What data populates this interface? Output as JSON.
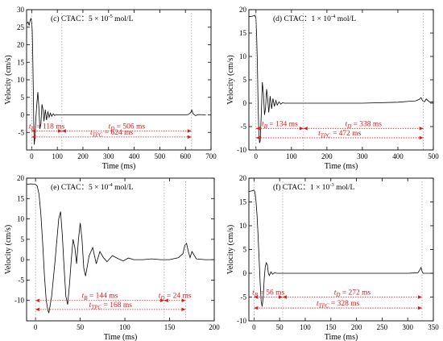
{
  "chart_data": [
    {
      "type": "line",
      "title": "(c) CTAC：5 × 10⁻⁵ mol/L",
      "xlabel": "Time (ms)",
      "ylabel": "Velocity (cm/s)",
      "xlim": [
        -20,
        700
      ],
      "ylim": [
        -10,
        30
      ],
      "xticks": [
        0,
        100,
        200,
        300,
        400,
        500,
        600,
        700
      ],
      "yticks": [
        -5,
        0,
        5,
        10,
        15,
        20,
        25,
        30
      ],
      "series": [
        {
          "x": [
            -20,
            -14,
            -10,
            -6,
            -3,
            0,
            2,
            4,
            6,
            8,
            10,
            13,
            16,
            20,
            24,
            28,
            32,
            36,
            40,
            44,
            48,
            53,
            58,
            63,
            68,
            73,
            78,
            84,
            90,
            96,
            102,
            108,
            115,
            120,
            150,
            200,
            300,
            400,
            500,
            600,
            610,
            620,
            625,
            630,
            640,
            650,
            680
          ],
          "y": [
            26,
            26.5,
            25.5,
            27,
            27.5,
            26.5,
            24,
            18,
            8,
            -2,
            -8.5,
            -6,
            -1,
            3,
            6.5,
            2,
            -4,
            -2.5,
            3,
            1.5,
            -1.8,
            1.5,
            -1.5,
            1,
            -0.7,
            0.5,
            -0.4,
            0.3,
            -0.2,
            0.1,
            0,
            0,
            0,
            0,
            0,
            0,
            0,
            0,
            0,
            0,
            0.1,
            0.6,
            1.4,
            0.3,
            -0.2,
            0.1,
            0
          ]
        }
      ],
      "annotations": [
        {
          "label": "t_B = 118 ms",
          "y": -4.6,
          "x_from": 0,
          "x_to": 118
        },
        {
          "label": "t_D = 506 ms",
          "y": -4.6,
          "x_from": 118,
          "x_to": 624
        },
        {
          "label": "t_TPC = 624 ms",
          "y": -6.3,
          "x_from": 0,
          "x_to": 624
        }
      ]
    },
    {
      "type": "line",
      "title": "(d) CTAC：1 × 10⁻⁴ mol/L",
      "xlabel": "Time (ms)",
      "ylabel": "Velocity (cm/s)",
      "xlim": [
        -20,
        500
      ],
      "ylim": [
        -10,
        20
      ],
      "xticks": [
        0,
        100,
        200,
        300,
        400,
        500
      ],
      "yticks": [
        -10,
        -5,
        0,
        5,
        10,
        15,
        20
      ],
      "series": [
        {
          "x": [
            -20,
            -10,
            -3,
            0,
            2,
            4,
            6,
            8,
            10,
            12,
            14,
            16,
            18,
            21,
            24,
            27,
            30,
            33,
            36,
            40,
            44,
            48,
            52,
            56,
            60,
            65,
            70,
            75,
            80,
            90,
            100,
            110,
            130,
            150,
            200,
            300,
            400,
            450,
            460,
            465,
            470,
            475,
            480,
            490,
            500
          ],
          "y": [
            18.5,
            18.6,
            18.8,
            18,
            14,
            8,
            0,
            -6,
            -8.5,
            -8,
            -4,
            0,
            4.5,
            2,
            -2.5,
            -1,
            3,
            1,
            -2,
            1.5,
            -1.2,
            1,
            -0.7,
            0.6,
            -0.4,
            0.3,
            -0.2,
            0.1,
            0,
            0,
            0,
            0,
            0,
            0,
            0,
            0,
            0.2,
            0.5,
            0.8,
            1.2,
            0.5,
            0.3,
            0.9,
            0.2,
            0.3
          ]
        }
      ],
      "annotations": [
        {
          "label": "t_B = 134 ms",
          "y": -5.4,
          "x_from": 0,
          "x_to": 134
        },
        {
          "label": "t_D = 338 ms",
          "y": -5.4,
          "x_from": 134,
          "x_to": 472
        },
        {
          "label": "t_TPC = 472 ms",
          "y": -7.4,
          "x_from": 0,
          "x_to": 472
        }
      ]
    },
    {
      "type": "line",
      "title": "(e) CTAC：5 × 10⁻⁴ mol/L",
      "xlabel": "Time (ms)",
      "ylabel": "Velocity (cm/s)",
      "xlim": [
        -10,
        200
      ],
      "ylim": [
        -15,
        20
      ],
      "xticks": [
        0,
        50,
        100,
        150,
        200
      ],
      "yticks": [
        -10,
        -5,
        0,
        5,
        10,
        15,
        20
      ],
      "series": [
        {
          "x": [
            -10,
            -5,
            0,
            2,
            4,
            6,
            8,
            10,
            12,
            14,
            15,
            18,
            22,
            26,
            28,
            30,
            32,
            34,
            36,
            38,
            40,
            42,
            44,
            46,
            48,
            50,
            52,
            54,
            56,
            60,
            64,
            68,
            72,
            76,
            80,
            86,
            92,
            98,
            104,
            110,
            120,
            130,
            140,
            150,
            160,
            165,
            167,
            169,
            171,
            173,
            175,
            180,
            190,
            200
          ],
          "y": [
            18.5,
            18.6,
            18.5,
            18,
            16,
            11,
            4,
            -4,
            -10,
            -12.5,
            -13,
            -9,
            0,
            10,
            11.8,
            6,
            -2,
            -9,
            -11,
            -6,
            0,
            5,
            3,
            -1,
            5,
            9,
            5,
            -2,
            -4,
            1,
            3,
            -1,
            2,
            0.5,
            -0.5,
            1,
            0.3,
            -0.3,
            0.4,
            0,
            0,
            0.2,
            0,
            0,
            0.5,
            1.5,
            3.5,
            4,
            2,
            0.5,
            2,
            0.2,
            0,
            0
          ]
        }
      ],
      "annotations": [
        {
          "label": "t_B = 144 ms",
          "y": -10,
          "x_from": 0,
          "x_to": 144
        },
        {
          "label": "t_D = 24 ms",
          "y": -10,
          "x_from": 144,
          "x_to": 168
        },
        {
          "label": "t_TPC = 168 ms",
          "y": -12.2,
          "x_from": 0,
          "x_to": 168
        }
      ]
    },
    {
      "type": "line",
      "title": "(f) CTAC：1 × 10⁻³ mol/L",
      "xlabel": "Time (ms)",
      "ylabel": "Velocity (cm/s)",
      "xlim": [
        -10,
        350
      ],
      "ylim": [
        -10,
        20
      ],
      "xticks": [
        0,
        50,
        100,
        150,
        200,
        250,
        300,
        350
      ],
      "yticks": [
        -10,
        -5,
        0,
        5,
        10,
        15,
        20
      ],
      "series": [
        {
          "x": [
            -10,
            -5,
            0,
            2,
            4,
            6,
            8,
            10,
            12,
            14,
            16,
            18,
            20,
            22,
            24,
            26,
            28,
            30,
            33,
            36,
            40,
            45,
            50,
            60,
            80,
            100,
            150,
            200,
            250,
            300,
            320,
            324,
            326,
            328,
            330,
            340,
            350
          ],
          "y": [
            17.2,
            17.3,
            17.5,
            17,
            15,
            12,
            8,
            3,
            -2,
            -6,
            -7,
            -5,
            -1,
            1.5,
            2.2,
            1.8,
            0,
            -0.5,
            0.3,
            -0.2,
            0.1,
            0,
            0,
            0,
            0,
            0,
            0,
            0,
            0,
            0,
            0.1,
            0.8,
            1.2,
            0.4,
            0,
            0,
            0
          ]
        }
      ],
      "annotations": [
        {
          "label": "t_B = 56 ms",
          "y": -5,
          "x_from": 0,
          "x_to": 56
        },
        {
          "label": "t_D = 272 ms",
          "y": -5,
          "x_from": 56,
          "x_to": 328
        },
        {
          "label": "t_TPC = 328 ms",
          "y": -7.3,
          "x_from": 0,
          "x_to": 328
        }
      ]
    }
  ],
  "colors": {
    "curve": "#000000",
    "annotation": "#e8141a",
    "axis": "#000000"
  }
}
